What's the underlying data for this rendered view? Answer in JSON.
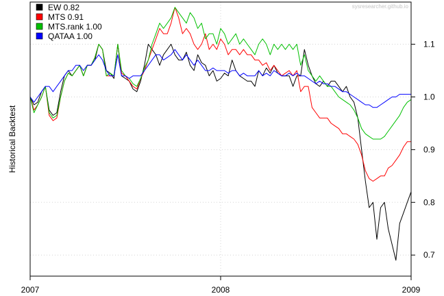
{
  "chart_data": {
    "type": "line",
    "watermark": "sysresearcher.github.io",
    "ylabel": "Historical Backtest",
    "xlim": [
      2007.0,
      2009.0
    ],
    "ylim": [
      0.66,
      1.18
    ],
    "x_ticks": [
      {
        "label": "2007",
        "value": 2007.0
      },
      {
        "label": "2008",
        "value": 2008.0
      },
      {
        "label": "2009",
        "value": 2009.0
      }
    ],
    "y_ticks": [
      {
        "label": "0.7",
        "value": 0.7
      },
      {
        "label": "0.8",
        "value": 0.8
      },
      {
        "label": "0.9",
        "value": 0.9
      },
      {
        "label": "1.0",
        "value": 1.0
      },
      {
        "label": "1.1",
        "value": 1.1
      }
    ],
    "grid": true,
    "legend_position": "top-left",
    "series": [
      {
        "name": "EW 0.82",
        "color": "#000000",
        "x": [
          2007.0,
          2007.02,
          2007.04,
          2007.06,
          2007.08,
          2007.1,
          2007.12,
          2007.14,
          2007.16,
          2007.18,
          2007.2,
          2007.22,
          2007.24,
          2007.26,
          2007.28,
          2007.3,
          2007.32,
          2007.34,
          2007.36,
          2007.38,
          2007.4,
          2007.42,
          2007.44,
          2007.46,
          2007.48,
          2007.5,
          2007.52,
          2007.54,
          2007.56,
          2007.58,
          2007.6,
          2007.62,
          2007.64,
          2007.66,
          2007.68,
          2007.7,
          2007.72,
          2007.74,
          2007.76,
          2007.78,
          2007.8,
          2007.82,
          2007.84,
          2007.86,
          2007.88,
          2007.9,
          2007.92,
          2007.94,
          2007.96,
          2007.98,
          2008.0,
          2008.02,
          2008.04,
          2008.06,
          2008.08,
          2008.1,
          2008.12,
          2008.14,
          2008.16,
          2008.18,
          2008.2,
          2008.22,
          2008.24,
          2008.26,
          2008.28,
          2008.3,
          2008.32,
          2008.34,
          2008.36,
          2008.38,
          2008.4,
          2008.42,
          2008.44,
          2008.46,
          2008.48,
          2008.5,
          2008.52,
          2008.54,
          2008.56,
          2008.58,
          2008.6,
          2008.62,
          2008.64,
          2008.66,
          2008.68,
          2008.7,
          2008.72,
          2008.74,
          2008.76,
          2008.78,
          2008.8,
          2008.82,
          2008.84,
          2008.86,
          2008.88,
          2008.9,
          2008.92,
          2008.94,
          2008.96,
          2008.98,
          2009.0
        ],
        "y": [
          1.0,
          0.985,
          0.99,
          1.01,
          1.02,
          0.975,
          0.965,
          0.97,
          1.01,
          1.04,
          1.05,
          1.04,
          1.05,
          1.06,
          1.04,
          1.06,
          1.06,
          1.07,
          1.1,
          1.09,
          1.05,
          1.045,
          1.035,
          1.1,
          1.04,
          1.035,
          1.03,
          1.015,
          1.01,
          1.03,
          1.06,
          1.1,
          1.09,
          1.08,
          1.06,
          1.08,
          1.09,
          1.1,
          1.08,
          1.07,
          1.07,
          1.085,
          1.06,
          1.05,
          1.08,
          1.065,
          1.06,
          1.04,
          1.05,
          1.03,
          1.035,
          1.045,
          1.04,
          1.07,
          1.05,
          1.04,
          1.035,
          1.03,
          1.03,
          1.02,
          1.05,
          1.04,
          1.055,
          1.045,
          1.06,
          1.045,
          1.04,
          1.04,
          1.04,
          1.02,
          1.04,
          1.04,
          1.09,
          1.06,
          1.04,
          1.025,
          1.02,
          1.03,
          1.02,
          1.03,
          1.03,
          1.02,
          1.01,
          1.02,
          1.0,
          0.99,
          0.96,
          0.9,
          0.84,
          0.79,
          0.8,
          0.73,
          0.79,
          0.8,
          0.75,
          0.72,
          0.69,
          0.76,
          0.78,
          0.8,
          0.82
        ]
      },
      {
        "name": "MTS 0.91",
        "color": "#ff0000",
        "x": [
          2007.0,
          2007.02,
          2007.04,
          2007.06,
          2007.08,
          2007.1,
          2007.12,
          2007.14,
          2007.16,
          2007.18,
          2007.2,
          2007.22,
          2007.24,
          2007.26,
          2007.28,
          2007.3,
          2007.32,
          2007.34,
          2007.36,
          2007.38,
          2007.4,
          2007.42,
          2007.44,
          2007.46,
          2007.48,
          2007.5,
          2007.52,
          2007.54,
          2007.56,
          2007.58,
          2007.6,
          2007.62,
          2007.64,
          2007.66,
          2007.68,
          2007.7,
          2007.72,
          2007.74,
          2007.76,
          2007.78,
          2007.8,
          2007.82,
          2007.84,
          2007.86,
          2007.88,
          2007.9,
          2007.92,
          2007.94,
          2007.96,
          2007.98,
          2008.0,
          2008.02,
          2008.04,
          2008.06,
          2008.08,
          2008.1,
          2008.12,
          2008.14,
          2008.16,
          2008.18,
          2008.2,
          2008.22,
          2008.24,
          2008.26,
          2008.28,
          2008.3,
          2008.32,
          2008.34,
          2008.36,
          2008.38,
          2008.4,
          2008.42,
          2008.44,
          2008.46,
          2008.48,
          2008.5,
          2008.52,
          2008.54,
          2008.56,
          2008.58,
          2008.6,
          2008.62,
          2008.64,
          2008.66,
          2008.68,
          2008.7,
          2008.72,
          2008.74,
          2008.76,
          2008.78,
          2008.8,
          2008.82,
          2008.84,
          2008.86,
          2008.88,
          2008.9,
          2008.92,
          2008.94,
          2008.96,
          2008.98,
          2009.0
        ],
        "y": [
          1.0,
          0.975,
          0.985,
          1.0,
          1.02,
          0.965,
          0.955,
          0.96,
          1.0,
          1.03,
          1.045,
          1.04,
          1.05,
          1.06,
          1.04,
          1.06,
          1.06,
          1.075,
          1.1,
          1.09,
          1.04,
          1.04,
          1.04,
          1.1,
          1.045,
          1.04,
          1.03,
          1.02,
          1.015,
          1.035,
          1.05,
          1.07,
          1.09,
          1.11,
          1.13,
          1.12,
          1.12,
          1.14,
          1.17,
          1.15,
          1.12,
          1.13,
          1.12,
          1.1,
          1.09,
          1.1,
          1.12,
          1.09,
          1.1,
          1.09,
          1.11,
          1.1,
          1.08,
          1.09,
          1.09,
          1.08,
          1.09,
          1.08,
          1.08,
          1.07,
          1.07,
          1.06,
          1.065,
          1.05,
          1.06,
          1.05,
          1.04,
          1.045,
          1.05,
          1.04,
          1.05,
          1.01,
          1.02,
          1.02,
          0.98,
          0.97,
          0.96,
          0.96,
          0.96,
          0.95,
          0.945,
          0.94,
          0.93,
          0.93,
          0.925,
          0.92,
          0.91,
          0.89,
          0.86,
          0.845,
          0.84,
          0.845,
          0.85,
          0.85,
          0.865,
          0.87,
          0.88,
          0.89,
          0.905,
          0.915,
          0.915
        ]
      },
      {
        "name": "MTS.rank 1.00",
        "color": "#00c000",
        "x": [
          2007.0,
          2007.02,
          2007.04,
          2007.06,
          2007.08,
          2007.1,
          2007.12,
          2007.14,
          2007.16,
          2007.18,
          2007.2,
          2007.22,
          2007.24,
          2007.26,
          2007.28,
          2007.3,
          2007.32,
          2007.34,
          2007.36,
          2007.38,
          2007.4,
          2007.42,
          2007.44,
          2007.46,
          2007.48,
          2007.5,
          2007.52,
          2007.54,
          2007.56,
          2007.58,
          2007.6,
          2007.62,
          2007.64,
          2007.66,
          2007.68,
          2007.7,
          2007.72,
          2007.74,
          2007.76,
          2007.78,
          2007.8,
          2007.82,
          2007.84,
          2007.86,
          2007.88,
          2007.9,
          2007.92,
          2007.94,
          2007.96,
          2007.98,
          2008.0,
          2008.02,
          2008.04,
          2008.06,
          2008.08,
          2008.1,
          2008.12,
          2008.14,
          2008.16,
          2008.18,
          2008.2,
          2008.22,
          2008.24,
          2008.26,
          2008.28,
          2008.3,
          2008.32,
          2008.34,
          2008.36,
          2008.38,
          2008.4,
          2008.42,
          2008.44,
          2008.46,
          2008.48,
          2008.5,
          2008.52,
          2008.54,
          2008.56,
          2008.58,
          2008.6,
          2008.62,
          2008.64,
          2008.66,
          2008.68,
          2008.7,
          2008.72,
          2008.74,
          2008.76,
          2008.78,
          2008.8,
          2008.82,
          2008.84,
          2008.86,
          2008.88,
          2008.9,
          2008.92,
          2008.94,
          2008.96,
          2008.98,
          2009.0
        ],
        "y": [
          1.0,
          0.97,
          0.985,
          1.0,
          1.02,
          0.97,
          0.96,
          0.965,
          1.0,
          1.03,
          1.045,
          1.04,
          1.05,
          1.06,
          1.04,
          1.06,
          1.06,
          1.075,
          1.1,
          1.09,
          1.04,
          1.045,
          1.04,
          1.1,
          1.05,
          1.04,
          1.035,
          1.025,
          1.02,
          1.035,
          1.055,
          1.07,
          1.1,
          1.12,
          1.14,
          1.13,
          1.14,
          1.15,
          1.17,
          1.16,
          1.15,
          1.14,
          1.16,
          1.15,
          1.13,
          1.14,
          1.11,
          1.12,
          1.12,
          1.1,
          1.13,
          1.12,
          1.1,
          1.11,
          1.12,
          1.1,
          1.11,
          1.1,
          1.09,
          1.08,
          1.1,
          1.11,
          1.1,
          1.08,
          1.1,
          1.09,
          1.1,
          1.09,
          1.1,
          1.09,
          1.1,
          1.06,
          1.08,
          1.05,
          1.04,
          1.03,
          1.04,
          1.03,
          1.02,
          1.02,
          1.01,
          1.0,
          0.995,
          0.99,
          0.985,
          0.975,
          0.96,
          0.94,
          0.93,
          0.925,
          0.92,
          0.92,
          0.92,
          0.925,
          0.935,
          0.945,
          0.955,
          0.965,
          0.98,
          0.99,
          0.995
        ]
      },
      {
        "name": "QATAA 1.00",
        "color": "#0000ff",
        "x": [
          2007.0,
          2007.02,
          2007.04,
          2007.06,
          2007.08,
          2007.1,
          2007.12,
          2007.14,
          2007.16,
          2007.18,
          2007.2,
          2007.22,
          2007.24,
          2007.26,
          2007.28,
          2007.3,
          2007.32,
          2007.34,
          2007.36,
          2007.38,
          2007.4,
          2007.42,
          2007.44,
          2007.46,
          2007.48,
          2007.5,
          2007.52,
          2007.54,
          2007.56,
          2007.58,
          2007.6,
          2007.62,
          2007.64,
          2007.66,
          2007.68,
          2007.7,
          2007.72,
          2007.74,
          2007.76,
          2007.78,
          2007.8,
          2007.82,
          2007.84,
          2007.86,
          2007.88,
          2007.9,
          2007.92,
          2007.94,
          2007.96,
          2007.98,
          2008.0,
          2008.02,
          2008.04,
          2008.06,
          2008.08,
          2008.1,
          2008.12,
          2008.14,
          2008.16,
          2008.18,
          2008.2,
          2008.22,
          2008.24,
          2008.26,
          2008.28,
          2008.3,
          2008.32,
          2008.34,
          2008.36,
          2008.38,
          2008.4,
          2008.42,
          2008.44,
          2008.46,
          2008.48,
          2008.5,
          2008.52,
          2008.54,
          2008.56,
          2008.58,
          2008.6,
          2008.62,
          2008.64,
          2008.66,
          2008.68,
          2008.7,
          2008.72,
          2008.74,
          2008.76,
          2008.78,
          2008.8,
          2008.82,
          2008.84,
          2008.86,
          2008.88,
          2008.9,
          2008.92,
          2008.94,
          2008.96,
          2008.98,
          2009.0
        ],
        "y": [
          1.0,
          0.99,
          1.0,
          1.01,
          1.02,
          1.02,
          1.01,
          1.02,
          1.03,
          1.04,
          1.05,
          1.05,
          1.06,
          1.06,
          1.05,
          1.06,
          1.06,
          1.07,
          1.08,
          1.07,
          1.05,
          1.04,
          1.04,
          1.08,
          1.04,
          1.04,
          1.035,
          1.04,
          1.04,
          1.04,
          1.05,
          1.06,
          1.07,
          1.08,
          1.08,
          1.07,
          1.075,
          1.08,
          1.09,
          1.08,
          1.07,
          1.08,
          1.07,
          1.06,
          1.07,
          1.06,
          1.05,
          1.05,
          1.055,
          1.05,
          1.05,
          1.05,
          1.045,
          1.05,
          1.05,
          1.04,
          1.045,
          1.04,
          1.04,
          1.04,
          1.05,
          1.04,
          1.045,
          1.04,
          1.05,
          1.045,
          1.04,
          1.04,
          1.045,
          1.04,
          1.045,
          1.04,
          1.04,
          1.035,
          1.03,
          1.025,
          1.03,
          1.025,
          1.025,
          1.02,
          1.02,
          1.015,
          1.01,
          1.01,
          1.005,
          1.0,
          0.995,
          0.99,
          0.985,
          0.985,
          0.98,
          0.98,
          0.985,
          0.99,
          0.995,
          1.0,
          1.0,
          1.005,
          1.005,
          1.005,
          1.005
        ]
      }
    ]
  }
}
